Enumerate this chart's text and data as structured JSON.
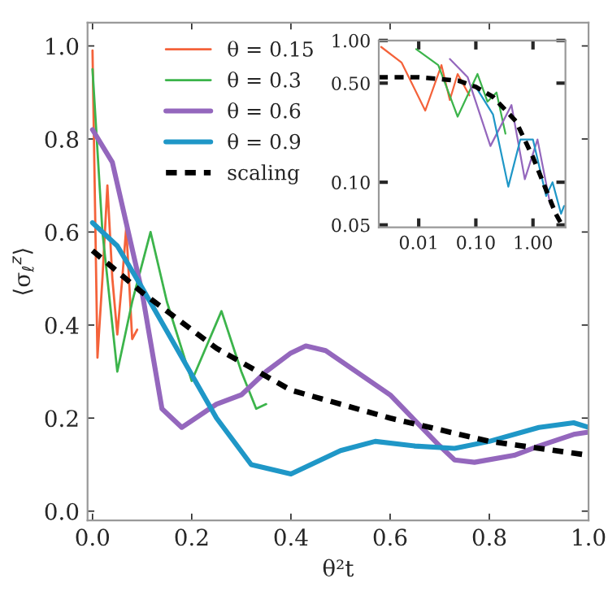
{
  "chart_data": [
    {
      "type": "line",
      "xlabel": "θ²t",
      "ylabel": "⟨σ$_{ℓ}$$^{z}$⟩",
      "xlim": [
        -0.01,
        1.0
      ],
      "ylim": [
        -0.02,
        1.05
      ],
      "xticks": [
        {
          "value": 0,
          "label": "0.0"
        },
        {
          "value": 0.2,
          "label": "0.2"
        },
        {
          "value": 0.4,
          "label": "0.4"
        },
        {
          "value": 0.6,
          "label": "0.6"
        },
        {
          "value": 0.8,
          "label": "0.8"
        },
        {
          "value": 1.0,
          "label": "1.0"
        }
      ],
      "yticks": [
        {
          "value": 0,
          "label": "0.0"
        },
        {
          "value": 0.2,
          "label": "0.2"
        },
        {
          "value": 0.4,
          "label": "0.4"
        },
        {
          "value": 0.6,
          "label": "0.6"
        },
        {
          "value": 0.8,
          "label": "0.8"
        },
        {
          "value": 1.0,
          "label": "1.0"
        }
      ],
      "grid": false,
      "legend": "top left",
      "series": [
        {
          "name": "θ = 0.15",
          "color": "#f4623a",
          "x": [
            0,
            0.01,
            0.02,
            0.03,
            0.04,
            0.05,
            0.06,
            0.068,
            0.08,
            0.09
          ],
          "values": [
            0.99,
            0.33,
            0.5,
            0.7,
            0.5,
            0.38,
            0.5,
            0.61,
            0.37,
            0.39
          ]
        },
        {
          "name": "θ = 0.3",
          "color": "#3cb44b",
          "x": [
            0,
            0.02,
            0.05,
            0.08,
            0.117,
            0.15,
            0.2,
            0.26,
            0.3,
            0.33,
            0.35
          ],
          "values": [
            0.95,
            0.6,
            0.3,
            0.45,
            0.6,
            0.45,
            0.28,
            0.43,
            0.3,
            0.22,
            0.23
          ]
        },
        {
          "name": "θ = 0.6",
          "color": "#9467bd",
          "x": [
            0,
            0.04,
            0.1,
            0.14,
            0.18,
            0.25,
            0.3,
            0.35,
            0.4,
            0.43,
            0.47,
            0.6,
            0.7,
            0.73,
            0.77,
            0.85,
            0.9,
            0.97,
            1.0
          ],
          "values": [
            0.82,
            0.75,
            0.47,
            0.22,
            0.18,
            0.23,
            0.25,
            0.3,
            0.34,
            0.355,
            0.345,
            0.25,
            0.14,
            0.11,
            0.105,
            0.12,
            0.14,
            0.165,
            0.17
          ]
        },
        {
          "name": "θ = 0.9",
          "color": "#1f97c7",
          "x": [
            0,
            0.05,
            0.1,
            0.25,
            0.32,
            0.4,
            0.5,
            0.57,
            0.65,
            0.73,
            0.8,
            0.9,
            0.97,
            1.0
          ],
          "values": [
            0.62,
            0.57,
            0.48,
            0.2,
            0.1,
            0.08,
            0.13,
            0.15,
            0.14,
            0.135,
            0.15,
            0.18,
            0.19,
            0.18
          ]
        },
        {
          "name": "scaling",
          "color": "#000000",
          "line_style": "dashed",
          "x": [
            0,
            0.1,
            0.25,
            0.4,
            0.6,
            0.8,
            1.0
          ],
          "values": [
            0.56,
            0.47,
            0.35,
            0.26,
            0.2,
            0.15,
            0.12
          ]
        }
      ]
    },
    {
      "type": "line",
      "log": "xy",
      "xlim": [
        0.002,
        3.7
      ],
      "ylim": [
        0.048,
        1.0
      ],
      "xticks": [
        {
          "value": 0.01,
          "label": "0.01"
        },
        {
          "value": 0.1,
          "label": "0.10"
        },
        {
          "value": 1.0,
          "label": "1.00"
        }
      ],
      "yticks": [
        {
          "value": 0.05,
          "label": "0.05"
        },
        {
          "value": 0.1,
          "label": "0.10"
        },
        {
          "value": 0.5,
          "label": "0.50"
        },
        {
          "value": 1.0,
          "label": "1.00"
        }
      ],
      "grid": false,
      "series": [
        {
          "color": "#f4623a",
          "x": [
            0.0022,
            0.005,
            0.013,
            0.025,
            0.035,
            0.048,
            0.077
          ],
          "values": [
            0.9,
            0.7,
            0.32,
            0.67,
            0.38,
            0.58,
            0.41
          ]
        },
        {
          "color": "#3cb44b",
          "x": [
            0.009,
            0.022,
            0.048,
            0.107,
            0.16,
            0.23,
            0.33
          ],
          "values": [
            0.87,
            0.67,
            0.29,
            0.58,
            0.37,
            0.43,
            0.22
          ]
        },
        {
          "color": "#9467bd",
          "x": [
            0.035,
            0.072,
            0.18,
            0.42,
            0.72,
            1.2,
            2.0
          ],
          "values": [
            0.74,
            0.55,
            0.18,
            0.35,
            0.105,
            0.2,
            0.07
          ]
        },
        {
          "color": "#1f97c7",
          "x": [
            0.1,
            0.2,
            0.37,
            0.6,
            1.0,
            1.7,
            2.2,
            3.1,
            3.5
          ],
          "values": [
            0.47,
            0.3,
            0.093,
            0.2,
            0.2,
            0.08,
            0.1,
            0.06,
            0.068
          ]
        },
        {
          "color": "#000000",
          "line_style": "dashed",
          "x": [
            0.002,
            0.01,
            0.05,
            0.1,
            0.2,
            0.5,
            1.0,
            1.5,
            2.5,
            3.2
          ],
          "values": [
            0.55,
            0.55,
            0.52,
            0.47,
            0.4,
            0.27,
            0.15,
            0.1,
            0.06,
            0.05
          ]
        }
      ]
    }
  ]
}
